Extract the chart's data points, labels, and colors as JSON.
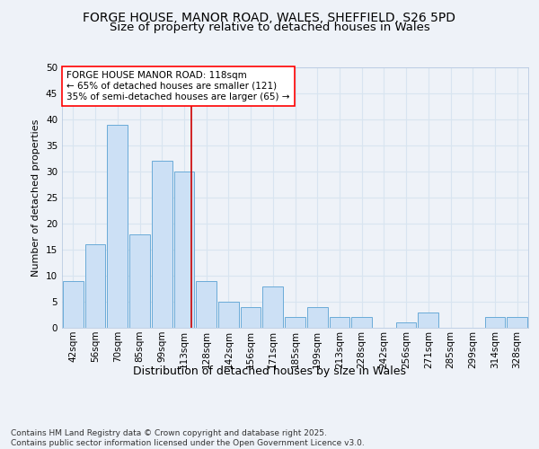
{
  "title1": "FORGE HOUSE, MANOR ROAD, WALES, SHEFFIELD, S26 5PD",
  "title2": "Size of property relative to detached houses in Wales",
  "xlabel": "Distribution of detached houses by size in Wales",
  "ylabel": "Number of detached properties",
  "categories": [
    "42sqm",
    "56sqm",
    "70sqm",
    "85sqm",
    "99sqm",
    "113sqm",
    "128sqm",
    "142sqm",
    "156sqm",
    "171sqm",
    "185sqm",
    "199sqm",
    "213sqm",
    "228sqm",
    "242sqm",
    "256sqm",
    "271sqm",
    "285sqm",
    "299sqm",
    "314sqm",
    "328sqm"
  ],
  "values": [
    9,
    16,
    39,
    18,
    32,
    30,
    9,
    5,
    4,
    8,
    2,
    4,
    2,
    2,
    0,
    1,
    3,
    0,
    0,
    2,
    2
  ],
  "bar_color": "#cce0f5",
  "bar_edge_color": "#6aabd8",
  "bar_width": 0.92,
  "ylim": [
    0,
    50
  ],
  "yticks": [
    0,
    5,
    10,
    15,
    20,
    25,
    30,
    35,
    40,
    45,
    50
  ],
  "red_line_color": "#cc0000",
  "annotation_text": "FORGE HOUSE MANOR ROAD: 118sqm\n← 65% of detached houses are smaller (121)\n35% of semi-detached houses are larger (65) →",
  "footer_text": "Contains HM Land Registry data © Crown copyright and database right 2025.\nContains public sector information licensed under the Open Government Licence v3.0.",
  "background_color": "#eef2f8",
  "grid_color": "#d8e4f0",
  "title1_fontsize": 10,
  "title2_fontsize": 9.5,
  "xlabel_fontsize": 9,
  "ylabel_fontsize": 8,
  "tick_fontsize": 7.5,
  "annotation_fontsize": 7.5,
  "footer_fontsize": 6.5
}
